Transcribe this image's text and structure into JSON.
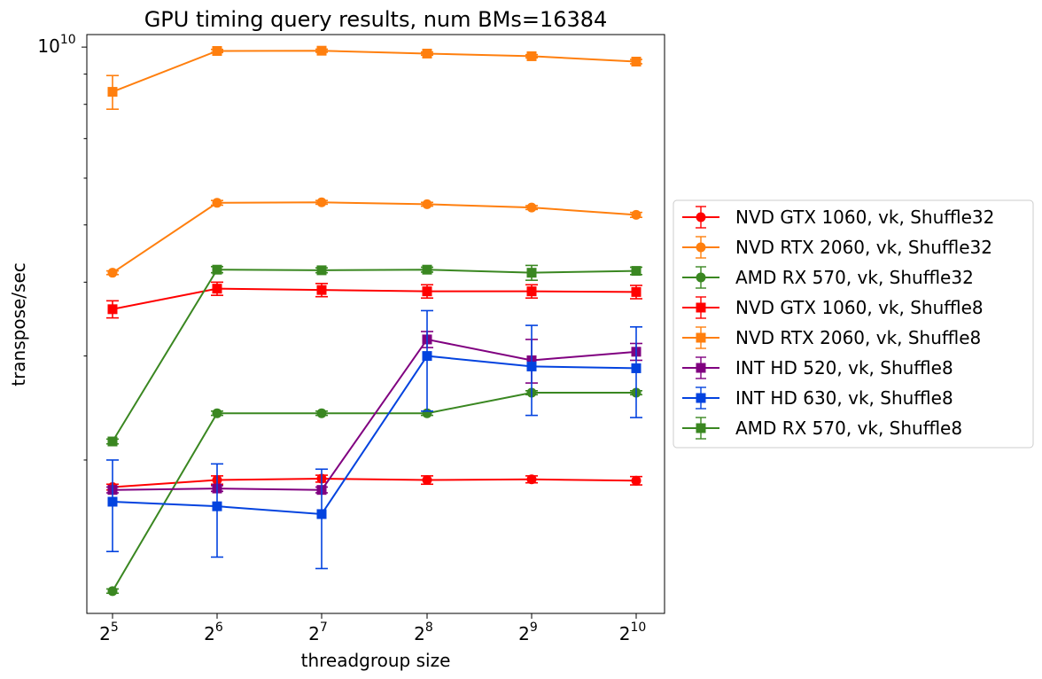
{
  "chart_data": {
    "type": "line",
    "title": "GPU timing query results, num BMs=16384",
    "xlabel": "threadgroup size",
    "ylabel": "transpose/sec",
    "x_scale": "log2",
    "y_scale": "log",
    "x": [
      32,
      64,
      128,
      256,
      512,
      1024
    ],
    "x_ticks": [
      {
        "base": "2",
        "exp": "5"
      },
      {
        "base": "2",
        "exp": "6"
      },
      {
        "base": "2",
        "exp": "7"
      },
      {
        "base": "2",
        "exp": "8"
      },
      {
        "base": "2",
        "exp": "9"
      },
      {
        "base": "2",
        "exp": "10"
      }
    ],
    "y_tick_label": {
      "base": "10",
      "exp": "10"
    },
    "y_tick_value": 10000000000,
    "ylim": [
      1100000000,
      10500000000
    ],
    "legend_position": "right",
    "grid": false,
    "series": [
      {
        "name": "NVD GTX 1060, vk, Shuffle32",
        "color": "#ff0000",
        "marker": "circle",
        "values": [
          1800000000,
          1850000000,
          1860000000,
          1850000000,
          1855000000,
          1845000000
        ],
        "errors": [
          20000000,
          30000000,
          25000000,
          30000000,
          25000000,
          30000000
        ]
      },
      {
        "name": "NVD RTX 2060, vk, Shuffle32",
        "color": "#ff7f0e",
        "marker": "circle",
        "values": [
          4150000000,
          5450000000,
          5460000000,
          5420000000,
          5350000000,
          5200000000
        ],
        "errors": [
          30000000,
          50000000,
          40000000,
          40000000,
          40000000,
          50000000
        ]
      },
      {
        "name": "AMD RX 570, vk, Shuffle32",
        "color": "#3a8721",
        "marker": "circle",
        "values": [
          1200000000,
          2400000000,
          2400000000,
          2400000000,
          2600000000,
          2600000000
        ],
        "errors": [
          10000000,
          20000000,
          20000000,
          20000000,
          20000000,
          20000000
        ]
      },
      {
        "name": "NVD GTX 1060, vk, Shuffle8",
        "color": "#ff0000",
        "marker": "square",
        "values": [
          3600000000,
          3900000000,
          3880000000,
          3860000000,
          3860000000,
          3850000000
        ],
        "errors": [
          120000000,
          100000000,
          100000000,
          100000000,
          100000000,
          100000000
        ]
      },
      {
        "name": "NVD RTX 2060, vk, Shuffle8",
        "color": "#ff7f0e",
        "marker": "square",
        "values": [
          8400000000,
          9850000000,
          9860000000,
          9750000000,
          9650000000,
          9450000000
        ],
        "errors": [
          550000000,
          60000000,
          60000000,
          60000000,
          60000000,
          80000000
        ]
      },
      {
        "name": "INT HD 520, vk, Shuffle8",
        "color": "#800080",
        "marker": "square",
        "values": [
          1780000000,
          1790000000,
          1780000000,
          3200000000,
          2950000000,
          3050000000
        ],
        "errors": [
          20000000,
          20000000,
          20000000,
          100000000,
          250000000,
          100000000
        ]
      },
      {
        "name": "INT HD 630, vk, Shuffle8",
        "color": "#0343df",
        "marker": "square",
        "values": [
          1700000000,
          1670000000,
          1620000000,
          3000000000,
          2880000000,
          2860000000
        ],
        "errors": [
          300000000,
          300000000,
          310000000,
          580000000,
          500000000,
          500000000
        ]
      },
      {
        "name": "AMD RX 570, vk, Shuffle8",
        "color": "#3a8721",
        "marker": "square",
        "values": [
          2150000000,
          4200000000,
          4190000000,
          4200000000,
          4150000000,
          4180000000
        ],
        "errors": [
          20000000,
          50000000,
          40000000,
          40000000,
          120000000,
          60000000
        ]
      }
    ]
  }
}
